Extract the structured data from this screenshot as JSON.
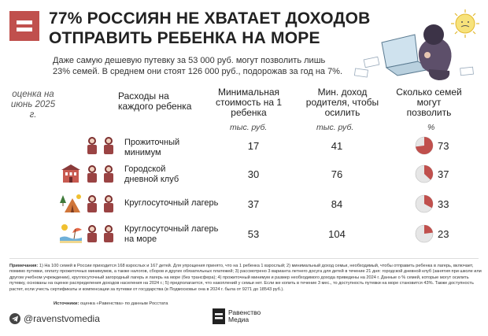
{
  "title_line1": "77% РОССИЯН НЕ ХВАТАЕТ ДОХОДОВ",
  "title_line2": "ОТПРАВИТЬ РЕБЕНКА НА МОРЕ",
  "subtitle": "Даже самую дешевую путевку за 53 000 руб. могут позволить лишь 23% семей. В среднем они стоят 126 000 руб., подорожав за год на 7%.",
  "evaluation_note": "оценка на июнь 2025 г.",
  "headers": {
    "expenses": "Расходы на каждого ребенка",
    "min_cost": "Минимальная стоимость на 1 ребенка",
    "min_income": "Мин. доход родителя, чтобы осилить",
    "families": "Сколько семей могут позволить"
  },
  "units": {
    "min_cost": "тыс. руб.",
    "min_income": "тыс. руб.",
    "families": "%"
  },
  "rows": [
    {
      "label": "Прожиточный минимум",
      "min_cost": "17",
      "min_income": "41",
      "families": "73",
      "families_value": 73
    },
    {
      "label": "Городской дневной клуб",
      "min_cost": "30",
      "min_income": "76",
      "families": "37",
      "families_value": 37
    },
    {
      "label": "Круглосуточный лагерь",
      "min_cost": "37",
      "min_income": "84",
      "families": "33",
      "families_value": 33
    },
    {
      "label": "Круглосуточный лагерь на море",
      "min_cost": "53",
      "min_income": "104",
      "families": "23",
      "families_value": 23
    }
  ],
  "notes_label": "Примечания:",
  "notes_text": "1) На 100 семей в России приходится 168 взрослых и 167 детей. Для упрощения принято, что на 1 ребенка 1 взрослый; 2) минимальный доход семьи, необходимый, чтобы отправить ребенка в лагерь, включает, помимо путевки, оплату прожиточных минимумов, а также налогов, сборов и других обязательных платежей; 3) рассмотрено 3 варианта летнего досуга для детей в течение 21 дня: городской дневной клуб (занятия при школе или другом учебном учреждении), круглосуточный загородный лагерь и лагерь на море (без трансфера); 4) прожиточный минимум и размер необходимого дохода приведены на 2024 г. Данные о % семей, которые могут осилить путевку, основаны на оценке распределения доходов населения на 2024 г.; 5) предполагается, что накоплений у семьи нет. Если же копить в течение 3 мес., то доступность путевки на море становится 43%. Также доступность растет, если учесть сертификаты и компенсации за путевки от государства (в Подмосковье она в 2024 г. была от 9271 до 18543 руб.).",
  "source_label": "Источники:",
  "source_text": "оценка «Равенства» по данным Росстата",
  "footer_handle": "@ravenstvomedia",
  "footer_logo_line1": "Равенство",
  "footer_logo_line2": "Медиа",
  "colors": {
    "accent": "#c0504d",
    "pie_rest": "#e6e6e6"
  }
}
